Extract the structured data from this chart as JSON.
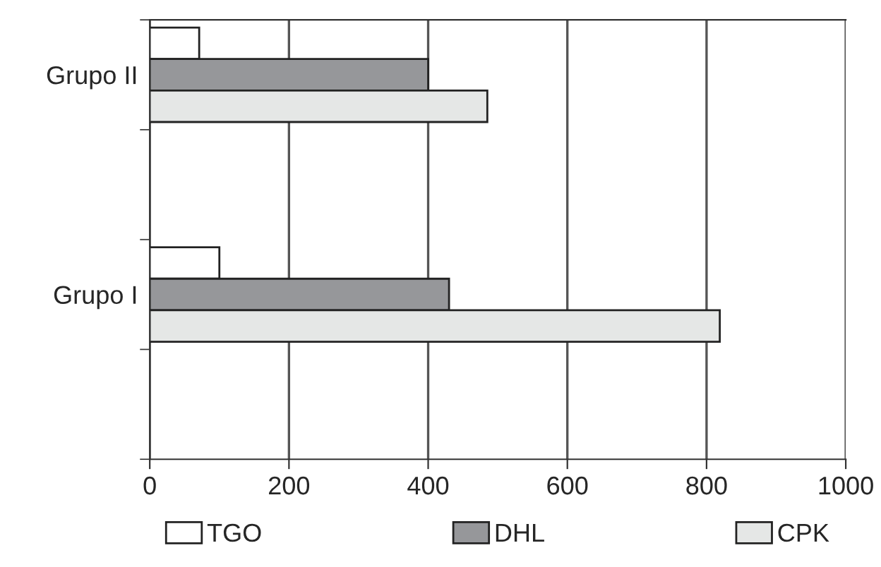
{
  "chart_data": {
    "type": "bar",
    "orientation": "horizontal",
    "categories": [
      "Grupo II",
      null,
      "Grupo I",
      null
    ],
    "series": [
      {
        "name": "TGO",
        "color": "#ffffff",
        "values": [
          71,
          null,
          100,
          null
        ]
      },
      {
        "name": "DHL",
        "color": "#96979a",
        "values": [
          400,
          null,
          430,
          null
        ]
      },
      {
        "name": "CPK",
        "color": "#e5e7e6",
        "values": [
          485,
          null,
          819,
          null
        ]
      }
    ],
    "xlim": [
      0,
      1000
    ],
    "xticks": [
      0,
      200,
      400,
      600,
      800,
      1000
    ],
    "grid": "x",
    "legend": "bottom"
  }
}
